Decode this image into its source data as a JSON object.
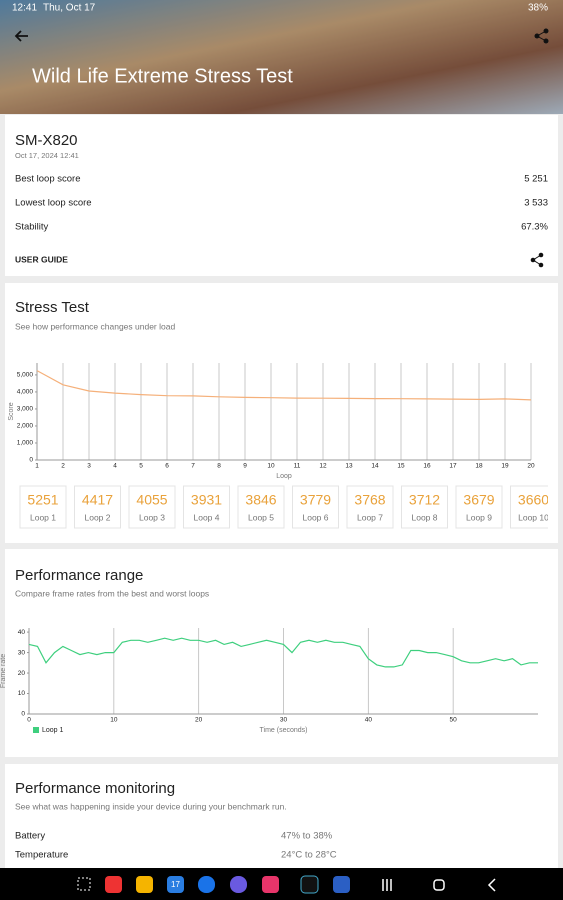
{
  "status_bar": {
    "time": "12:41",
    "date": "Thu, Oct 17",
    "battery": "38%"
  },
  "header": {
    "title": "Wild Life Extreme Stress Test"
  },
  "summary": {
    "device": "SM-X820",
    "date": "Oct 17, 2024 12:41",
    "rows": [
      {
        "label": "Best loop score",
        "value": "5 251"
      },
      {
        "label": "Lowest loop score",
        "value": "3 533"
      },
      {
        "label": "Stability",
        "value": "67.3%"
      }
    ],
    "user_guide": "USER GUIDE"
  },
  "stress_test": {
    "title": "Stress Test",
    "subtitle": "See how performance changes under load",
    "card_labels": [
      "Loop 1",
      "Loop 2",
      "Loop 3",
      "Loop 4",
      "Loop 5",
      "Loop 6",
      "Loop 7",
      "Loop 8",
      "Loop 9",
      "Loop 10"
    ],
    "chart_data": {
      "type": "line",
      "y_label": "Score",
      "x_label": "Loop",
      "x": [
        1,
        2,
        3,
        4,
        5,
        6,
        7,
        8,
        9,
        10,
        11,
        12,
        13,
        14,
        15,
        16,
        17,
        18,
        19,
        20
      ],
      "values": [
        5251,
        4417,
        4055,
        3931,
        3846,
        3779,
        3768,
        3712,
        3679,
        3660,
        3640,
        3630,
        3620,
        3610,
        3600,
        3590,
        3580,
        3560,
        3590,
        3533
      ],
      "color": "#f5b07a",
      "xlim": [
        1,
        20
      ],
      "ylim": [
        0,
        5700
      ],
      "yticks": [
        0,
        {
          "value": 1000,
          "label": "1,000"
        },
        {
          "value": 2000,
          "label": "2,000"
        },
        {
          "value": 3000,
          "label": "3,000"
        },
        {
          "value": 4000,
          "label": "4,000"
        },
        {
          "value": 5000,
          "label": "5,000"
        }
      ],
      "grid": "vertical"
    }
  },
  "performance_range": {
    "title": "Performance range",
    "subtitle": "Compare frame rates from the best and worst loops",
    "chart_data": {
      "type": "line",
      "y_label": "Frame rate",
      "x_label": "Time (seconds)",
      "x": [
        0,
        1,
        2,
        3,
        4,
        5,
        6,
        7,
        8,
        9,
        10,
        11,
        12,
        13,
        14,
        15,
        16,
        17,
        18,
        19,
        20,
        21,
        22,
        23,
        24,
        25,
        26,
        27,
        28,
        29,
        30,
        31,
        32,
        33,
        34,
        35,
        36,
        37,
        38,
        39,
        40,
        41,
        42,
        43,
        44,
        45,
        46,
        47,
        48,
        49,
        50,
        51,
        52,
        53,
        54,
        55,
        56,
        57,
        58,
        59,
        60
      ],
      "series": [
        {
          "name": "Loop 1",
          "color": "#3ecf7e",
          "values": [
            34,
            33,
            25,
            30,
            33,
            31,
            29,
            30,
            29,
            30,
            30,
            35,
            36,
            36,
            35,
            36,
            37,
            36,
            37,
            36,
            36,
            35,
            36,
            34,
            35,
            33,
            34,
            35,
            36,
            35,
            34,
            30,
            35,
            36,
            35,
            36,
            35,
            35,
            34,
            33,
            27,
            24,
            23,
            23,
            24,
            31,
            31,
            30,
            30,
            29,
            28,
            26,
            25,
            25,
            26,
            27,
            26,
            27,
            24,
            25,
            25
          ]
        }
      ],
      "xlim": [
        0,
        60
      ],
      "xticks": [
        0,
        10,
        20,
        30,
        40,
        50
      ],
      "ylim": [
        0,
        42
      ],
      "yticks": [
        0,
        10,
        20,
        30,
        40
      ],
      "grid": "vertical",
      "legend": "bottom-left"
    }
  },
  "monitoring": {
    "title": "Performance monitoring",
    "subtitle": "See what was happening inside your device during your benchmark run.",
    "rows": [
      {
        "label": "Battery",
        "value": "47% to 38%"
      },
      {
        "label": "Temperature",
        "value": "24°C to 28°C"
      }
    ]
  },
  "taskbar": {
    "calendar": "17"
  }
}
